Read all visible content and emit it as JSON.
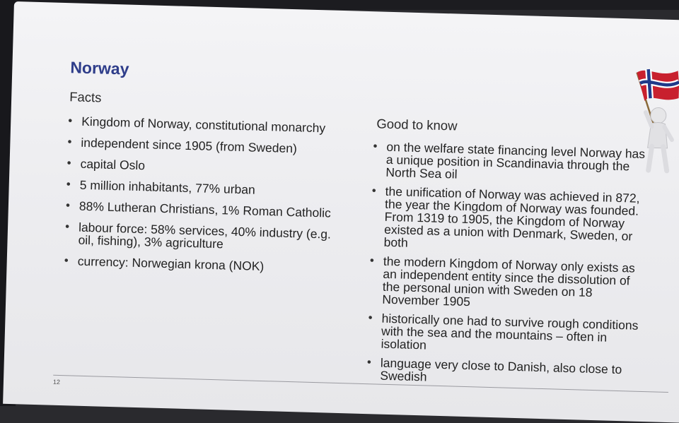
{
  "slide": {
    "title": "Norway",
    "facts": {
      "heading": "Facts",
      "items": [
        "Kingdom of Norway, constitutional monarchy",
        "independent since 1905 (from Sweden)",
        "capital Oslo",
        "5 million inhabitants, 77% urban",
        "88% Lutheran Christians, 1% Roman Catholic",
        "labour force: 58% services, 40% industry (e.g. oil, fishing), 3% agriculture",
        "currency: Norwegian krona (NOK)"
      ]
    },
    "good_to_know": {
      "heading": "Good to know",
      "items": [
        "on the welfare state financing level Norway has a unique position in Scandinavia through the North Sea oil",
        "the unification of Norway was achieved in 872, the year the Kingdom of Norway was founded. From 1319 to 1905, the Kingdom of Norway existed as a union with Denmark, Sweden, or both",
        "the modern Kingdom of Norway only exists as an independent entity since the dissolution of the personal union with Sweden on 18 November 1905",
        "historically one had to survive rough conditions with the sea and the mountains – often in isolation",
        "language very close to Danish, also close to Swedish"
      ]
    },
    "page_number": "12",
    "illustration": {
      "icon": "figure-with-norway-flag-icon",
      "colors": {
        "flag_red": "#c8202e",
        "flag_blue": "#1f3a8a",
        "flag_white": "#ffffff"
      }
    }
  }
}
